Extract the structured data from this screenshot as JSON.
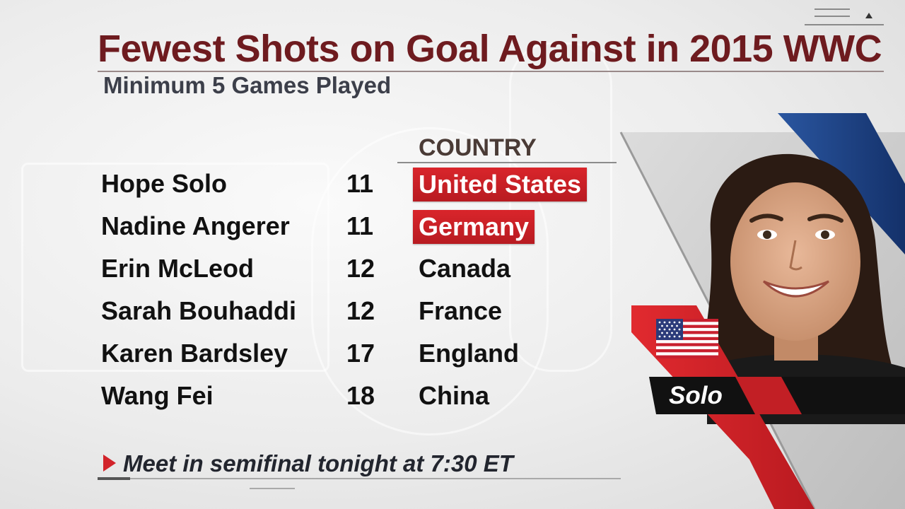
{
  "graphic": {
    "title": "Fewest Shots on Goal Against in 2015 WWC",
    "subtitle": "Minimum 5 Games Played",
    "column_header": "COUNTRY"
  },
  "rows": [
    {
      "name": "Hope Solo",
      "shots": "11",
      "country": "United States",
      "highlighted": true
    },
    {
      "name": "Nadine Angerer",
      "shots": "11",
      "country": "Germany",
      "highlighted": true
    },
    {
      "name": "Erin McLeod",
      "shots": "12",
      "country": "Canada",
      "highlighted": false
    },
    {
      "name": "Sarah Bouhaddi",
      "shots": "12",
      "country": "France",
      "highlighted": false
    },
    {
      "name": "Karen Bardsley",
      "shots": "17",
      "country": "England",
      "highlighted": false
    },
    {
      "name": "Wang Fei",
      "shots": "18",
      "country": "China",
      "highlighted": false
    }
  ],
  "note": {
    "text": "Meet in semifinal tonight at 7:30 ET",
    "icon": "play-triangle-icon"
  },
  "player_panel": {
    "label": "Solo",
    "flag_icon": "us-flag-icon",
    "accent_color": "#d2232a",
    "stripe_color": "#1d3e7a"
  },
  "colors": {
    "title": "#6e1b1f",
    "highlight": "#d2232a"
  }
}
